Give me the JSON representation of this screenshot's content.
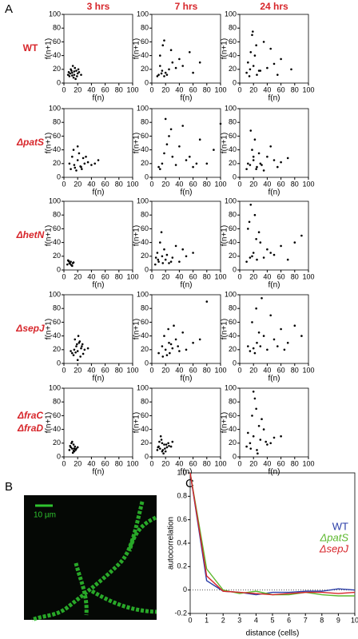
{
  "figure": {
    "panel_labels": [
      "A",
      "B",
      "C"
    ],
    "columns": [
      "3 hrs",
      "7 hrs",
      "24 hrs"
    ],
    "rows": [
      [
        "WT"
      ],
      [
        "ΔpatS"
      ],
      [
        "ΔhetN"
      ],
      [
        "ΔsepJ"
      ],
      [
        "ΔfraC",
        "ΔfraD"
      ]
    ],
    "scale_bar": "10 µm"
  },
  "chart_data": [
    {
      "type": "scatter",
      "xlabel": "f(n)",
      "ylabel": "f(n+1)",
      "xlim": [
        0,
        100
      ],
      "ylim": [
        0,
        100
      ],
      "xticks": [
        0,
        20,
        40,
        60,
        80,
        100
      ],
      "yticks": [
        0,
        20,
        40,
        60,
        80,
        100
      ],
      "color": "#000000",
      "x": [
        8,
        12,
        15,
        18,
        10,
        20,
        14,
        22,
        6,
        16,
        11,
        19,
        13,
        25,
        9,
        17,
        21,
        7,
        15,
        12
      ],
      "y": [
        10,
        15,
        12,
        18,
        20,
        14,
        8,
        16,
        12,
        22,
        18,
        10,
        25,
        12,
        14,
        6,
        20,
        16,
        17,
        11
      ]
    },
    {
      "type": "scatter",
      "xlabel": "f(n)",
      "ylabel": "f(n+1)",
      "xlim": [
        0,
        100
      ],
      "ylim": [
        0,
        100
      ],
      "xticks": [
        0,
        20,
        40,
        60,
        80,
        100
      ],
      "yticks": [
        0,
        20,
        40,
        60,
        80,
        100
      ],
      "color": "#000000",
      "x": [
        10,
        15,
        20,
        12,
        18,
        25,
        30,
        14,
        40,
        55,
        16,
        22,
        35,
        60,
        12,
        45,
        8,
        28,
        18,
        70
      ],
      "y": [
        12,
        18,
        15,
        25,
        10,
        20,
        30,
        14,
        35,
        45,
        55,
        12,
        22,
        15,
        40,
        25,
        10,
        48,
        62,
        30
      ]
    },
    {
      "type": "scatter",
      "xlabel": "f(n)",
      "ylabel": "f(n+1)",
      "xlim": [
        0,
        100
      ],
      "ylim": [
        0,
        100
      ],
      "xticks": [
        0,
        20,
        40,
        60,
        80,
        100
      ],
      "yticks": [
        0,
        20,
        40,
        60,
        80,
        100
      ],
      "color": "#000000",
      "x": [
        10,
        15,
        20,
        25,
        12,
        30,
        18,
        40,
        22,
        50,
        14,
        60,
        35,
        16,
        28,
        45,
        19,
        75,
        24,
        55
      ],
      "y": [
        15,
        20,
        25,
        12,
        30,
        18,
        70,
        22,
        40,
        28,
        10,
        35,
        60,
        45,
        18,
        50,
        75,
        20,
        55,
        12
      ]
    },
    {
      "type": "scatter",
      "xlabel": "f(n)",
      "ylabel": "f(n+1)",
      "xlim": [
        0,
        100
      ],
      "ylim": [
        0,
        100
      ],
      "xticks": [
        0,
        20,
        40,
        60,
        80,
        100
      ],
      "yticks": [
        0,
        20,
        40,
        60,
        80,
        100
      ],
      "color": "#000000",
      "x": [
        10,
        15,
        20,
        25,
        30,
        12,
        18,
        22,
        35,
        40,
        14,
        28,
        16,
        45,
        20,
        26,
        8,
        32,
        24,
        50
      ],
      "y": [
        12,
        18,
        25,
        15,
        20,
        30,
        10,
        35,
        22,
        18,
        40,
        28,
        14,
        20,
        45,
        12,
        20,
        30,
        16,
        25
      ]
    },
    {
      "type": "scatter",
      "xlabel": "f(n)",
      "ylabel": "f(n+1)",
      "xlim": [
        0,
        100
      ],
      "ylim": [
        0,
        100
      ],
      "xticks": [
        0,
        20,
        40,
        60,
        80,
        100
      ],
      "yticks": [
        0,
        20,
        40,
        60,
        80,
        100
      ],
      "color": "#000000",
      "x": [
        10,
        15,
        20,
        30,
        40,
        50,
        60,
        70,
        80,
        25,
        18,
        35,
        45,
        90,
        12,
        55,
        65,
        22,
        28,
        100
      ],
      "y": [
        15,
        20,
        85,
        30,
        45,
        25,
        15,
        55,
        20,
        60,
        35,
        18,
        75,
        40,
        12,
        30,
        20,
        48,
        70,
        78
      ]
    },
    {
      "type": "scatter",
      "xlabel": "f(n)",
      "ylabel": "f(n+1)",
      "xlim": [
        0,
        100
      ],
      "ylim": [
        0,
        100
      ],
      "xticks": [
        0,
        20,
        40,
        60,
        80,
        100
      ],
      "yticks": [
        0,
        20,
        40,
        60,
        80,
        100
      ],
      "color": "#000000",
      "x": [
        10,
        15,
        20,
        25,
        30,
        40,
        50,
        18,
        22,
        35,
        60,
        28,
        12,
        45,
        16,
        70,
        24,
        32,
        20,
        55
      ],
      "y": [
        12,
        18,
        25,
        15,
        20,
        30,
        25,
        40,
        55,
        10,
        22,
        35,
        20,
        45,
        68,
        28,
        12,
        18,
        30,
        15
      ]
    },
    {
      "type": "scatter",
      "xlabel": "f(n)",
      "ylabel": "f(n+1)",
      "xlim": [
        0,
        100
      ],
      "ylim": [
        0,
        100
      ],
      "xticks": [
        0,
        20,
        40,
        60,
        80,
        100
      ],
      "yticks": [
        0,
        20,
        40,
        60,
        80,
        100
      ],
      "color": "#000000",
      "x": [
        5,
        8,
        10,
        12,
        6,
        9,
        14,
        7,
        11,
        13
      ],
      "y": [
        8,
        10,
        12,
        6,
        14,
        9,
        11,
        13,
        7,
        10
      ]
    },
    {
      "type": "scatter",
      "xlabel": "f(n)",
      "ylabel": "f(n+1)",
      "xlim": [
        0,
        100
      ],
      "ylim": [
        0,
        100
      ],
      "xticks": [
        0,
        20,
        40,
        60,
        80,
        100
      ],
      "yticks": [
        0,
        20,
        40,
        60,
        80,
        100
      ],
      "color": "#000000",
      "x": [
        5,
        10,
        15,
        20,
        25,
        8,
        12,
        30,
        40,
        18,
        14,
        22,
        50,
        9,
        35,
        60,
        16,
        28,
        6,
        45
      ],
      "y": [
        8,
        12,
        20,
        15,
        10,
        25,
        40,
        18,
        12,
        30,
        55,
        22,
        20,
        15,
        35,
        25,
        10,
        12,
        18,
        30
      ]
    },
    {
      "type": "scatter",
      "xlabel": "f(n)",
      "ylabel": "f(n+1)",
      "xlim": [
        0,
        100
      ],
      "ylim": [
        0,
        100
      ],
      "xticks": [
        0,
        20,
        40,
        60,
        80,
        100
      ],
      "yticks": [
        0,
        20,
        40,
        60,
        80,
        100
      ],
      "color": "#000000",
      "x": [
        10,
        15,
        20,
        25,
        30,
        12,
        18,
        40,
        50,
        22,
        60,
        16,
        35,
        80,
        28,
        45,
        14,
        70,
        24,
        90
      ],
      "y": [
        12,
        18,
        25,
        15,
        40,
        60,
        20,
        30,
        22,
        80,
        35,
        95,
        18,
        40,
        55,
        25,
        70,
        15,
        45,
        50
      ]
    },
    {
      "type": "scatter",
      "xlabel": "f(n)",
      "ylabel": "f(n+1)",
      "xlim": [
        0,
        100
      ],
      "ylim": [
        0,
        100
      ],
      "xticks": [
        0,
        20,
        40,
        60,
        80,
        100
      ],
      "yticks": [
        0,
        20,
        40,
        60,
        80,
        100
      ],
      "color": "#000000",
      "x": [
        12,
        15,
        18,
        20,
        22,
        25,
        28,
        16,
        24,
        19,
        30,
        14,
        21,
        26,
        17,
        23,
        35,
        10,
        27,
        20
      ],
      "y": [
        15,
        20,
        25,
        18,
        30,
        22,
        14,
        35,
        10,
        28,
        20,
        12,
        40,
        25,
        16,
        32,
        22,
        18,
        28,
        5
      ]
    },
    {
      "type": "scatter",
      "xlabel": "f(n)",
      "ylabel": "f(n+1)",
      "xlim": [
        0,
        100
      ],
      "ylim": [
        0,
        100
      ],
      "xticks": [
        0,
        20,
        40,
        60,
        80,
        100
      ],
      "yticks": [
        0,
        20,
        40,
        60,
        80,
        100
      ],
      "color": "#000000",
      "x": [
        10,
        15,
        20,
        25,
        30,
        35,
        40,
        18,
        22,
        28,
        45,
        50,
        60,
        16,
        32,
        38,
        70,
        24,
        80,
        26
      ],
      "y": [
        15,
        25,
        20,
        30,
        22,
        35,
        18,
        40,
        12,
        28,
        45,
        20,
        30,
        10,
        55,
        25,
        35,
        50,
        90,
        15
      ]
    },
    {
      "type": "scatter",
      "xlabel": "f(n)",
      "ylabel": "f(n+1)",
      "xlim": [
        0,
        100
      ],
      "ylim": [
        0,
        100
      ],
      "xticks": [
        0,
        20,
        40,
        60,
        80,
        100
      ],
      "yticks": [
        0,
        20,
        40,
        60,
        80,
        100
      ],
      "color": "#000000",
      "x": [
        15,
        20,
        25,
        30,
        35,
        40,
        50,
        60,
        18,
        22,
        28,
        45,
        55,
        70,
        80,
        24,
        32,
        65,
        12,
        90
      ],
      "y": [
        18,
        22,
        30,
        25,
        40,
        20,
        35,
        50,
        60,
        15,
        45,
        70,
        25,
        30,
        55,
        80,
        95,
        20,
        25,
        40
      ]
    },
    {
      "type": "scatter",
      "xlabel": "f(n)",
      "ylabel": "f(n+1)",
      "xlim": [
        0,
        100
      ],
      "ylim": [
        0,
        100
      ],
      "xticks": [
        0,
        20,
        40,
        60,
        80,
        100
      ],
      "yticks": [
        0,
        20,
        40,
        60,
        80,
        100
      ],
      "color": "#000000",
      "x": [
        8,
        10,
        12,
        14,
        15,
        16,
        18,
        11,
        13,
        17,
        9,
        20,
        12,
        15,
        14
      ],
      "y": [
        10,
        14,
        12,
        18,
        8,
        15,
        12,
        20,
        6,
        10,
        16,
        14,
        22,
        12,
        9
      ]
    },
    {
      "type": "scatter",
      "xlabel": "f(n)",
      "ylabel": "f(n+1)",
      "xlim": [
        0,
        100
      ],
      "ylim": [
        0,
        100
      ],
      "xticks": [
        0,
        20,
        40,
        60,
        80,
        100
      ],
      "yticks": [
        0,
        20,
        40,
        60,
        80,
        100
      ],
      "color": "#000000",
      "x": [
        8,
        10,
        12,
        15,
        18,
        20,
        22,
        25,
        14,
        16,
        11,
        19,
        24,
        13,
        28,
        17,
        21,
        9,
        15,
        30
      ],
      "y": [
        10,
        15,
        12,
        20,
        18,
        8,
        14,
        16,
        25,
        10,
        22,
        12,
        20,
        30,
        15,
        5,
        18,
        14,
        8,
        22
      ]
    },
    {
      "type": "scatter",
      "xlabel": "f(n)",
      "ylabel": "f(n+1)",
      "xlim": [
        0,
        100
      ],
      "ylim": [
        0,
        100
      ],
      "xticks": [
        0,
        20,
        40,
        60,
        80,
        100
      ],
      "yticks": [
        0,
        20,
        40,
        60,
        80,
        100
      ],
      "color": "#000000",
      "x": [
        10,
        15,
        20,
        25,
        30,
        35,
        40,
        18,
        22,
        28,
        45,
        12,
        16,
        50,
        24,
        32,
        60,
        20,
        26,
        38
      ],
      "y": [
        15,
        20,
        30,
        10,
        25,
        40,
        18,
        60,
        85,
        45,
        20,
        35,
        12,
        28,
        70,
        55,
        30,
        95,
        5,
        22
      ]
    },
    {
      "type": "line",
      "xlabel": "distance (cells)",
      "ylabel": "autocorrelation",
      "xlim": [
        0,
        10
      ],
      "ylim": [
        -0.2,
        1.0
      ],
      "xticks": [
        0,
        1,
        2,
        3,
        4,
        5,
        6,
        7,
        8,
        9,
        10
      ],
      "yticks": [
        -0.2,
        0,
        0.2,
        0.4,
        0.6,
        0.8,
        {
          "value": 1.0,
          "label": "1.0"
        }
      ],
      "hline": 0,
      "legend": "upper right",
      "x": [
        0,
        1,
        2,
        3,
        4,
        5,
        6,
        7,
        8,
        9,
        10
      ],
      "series": [
        {
          "name": "WT",
          "color": "#2b3ea8",
          "values": [
            1.0,
            0.08,
            -0.01,
            -0.02,
            -0.04,
            -0.02,
            -0.02,
            -0.01,
            -0.01,
            0.01,
            0.0
          ]
        },
        {
          "name": "ΔpatS",
          "color": "#5cb82e",
          "values": [
            1.0,
            0.18,
            0.0,
            -0.03,
            -0.01,
            -0.04,
            -0.04,
            -0.02,
            -0.04,
            -0.05,
            -0.05
          ]
        },
        {
          "name": "ΔsepJ",
          "color": "#d7262b",
          "values": [
            1.0,
            0.12,
            -0.01,
            -0.02,
            -0.03,
            -0.04,
            -0.03,
            -0.02,
            -0.02,
            -0.03,
            -0.02
          ]
        }
      ]
    }
  ]
}
